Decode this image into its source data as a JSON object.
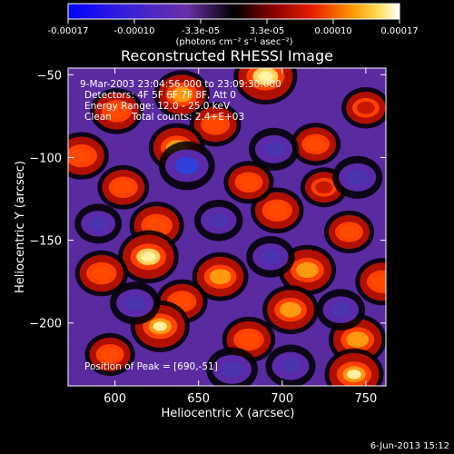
{
  "colorbar": {
    "tick_labels": [
      "-0.00017",
      "-0.00010",
      "-3.3e-05",
      "3.3e-05",
      "0.00010",
      "0.00017"
    ],
    "units_label": "(photons cm⁻² s⁻¹ asec⁻²)"
  },
  "annotations": {
    "time_range": "9-Mar-2003 23:04:56.000 to 23:09:30.000",
    "detectors": "Detectors: 4F 5F 6F 7F 8F, Att 0",
    "energy": "Energy Range: 12.0 - 25.0 keV",
    "algorithm": "Clean",
    "counts": "Total counts: 2.4+E+03",
    "peak": "Position of Peak = [690,-51]"
  },
  "footer": {
    "timestamp": "6-Jun-2013 15:12"
  },
  "colors": {
    "background": "#000000",
    "text": "#ffffff",
    "colormap_low": "#0000ff",
    "colormap_mid": "#000000",
    "colormap_high": "#ffffff"
  },
  "chart_data": {
    "type": "heatmap",
    "title": "Reconstructed RHESSI Image",
    "xlabel": "Heliocentric X (arcsec)",
    "ylabel": "Heliocentric Y (arcsec)",
    "xlim": [
      572,
      762
    ],
    "ylim": [
      -238,
      -46
    ],
    "x_ticks": [
      600,
      650,
      700,
      750
    ],
    "y_ticks": [
      -50,
      -100,
      -150,
      -200
    ],
    "x_tick_labels": [
      "600",
      "650",
      "700",
      "750"
    ],
    "y_tick_labels": [
      "−50",
      "−100",
      "−150",
      "−200"
    ],
    "colorbar_range": [
      -0.00017,
      0.00017
    ],
    "peak": {
      "x": 690,
      "y": -51
    },
    "features": [
      {
        "x": 690,
        "y": -51,
        "value": 0.00017
      },
      {
        "x": 640,
        "y": -62,
        "value": 0.00012
      },
      {
        "x": 601,
        "y": -72,
        "value": 0.0001
      },
      {
        "x": 660,
        "y": -80,
        "value": 9e-05
      },
      {
        "x": 580,
        "y": -99,
        "value": 0.00011
      },
      {
        "x": 637,
        "y": -94,
        "value": 0.00012
      },
      {
        "x": 720,
        "y": -92,
        "value": 8e-05
      },
      {
        "x": 750,
        "y": -70,
        "value": 7e-05
      },
      {
        "x": 605,
        "y": -118,
        "value": 9e-05
      },
      {
        "x": 725,
        "y": -118,
        "value": 6e-05
      },
      {
        "x": 697,
        "y": -132,
        "value": 0.0001
      },
      {
        "x": 680,
        "y": -115,
        "value": 8e-05
      },
      {
        "x": 625,
        "y": -141,
        "value": 0.00011
      },
      {
        "x": 740,
        "y": -145,
        "value": 8e-05
      },
      {
        "x": 620,
        "y": -160,
        "value": 0.00015
      },
      {
        "x": 663,
        "y": -172,
        "value": 0.00012
      },
      {
        "x": 715,
        "y": -168,
        "value": 0.00013
      },
      {
        "x": 592,
        "y": -170,
        "value": 0.0001
      },
      {
        "x": 760,
        "y": -175,
        "value": 0.00011
      },
      {
        "x": 640,
        "y": -187,
        "value": 9e-05
      },
      {
        "x": 705,
        "y": -192,
        "value": 0.00012
      },
      {
        "x": 627,
        "y": -202,
        "value": 0.00014
      },
      {
        "x": 680,
        "y": -210,
        "value": 0.0001
      },
      {
        "x": 745,
        "y": -210,
        "value": 0.00013
      },
      {
        "x": 597,
        "y": -219,
        "value": 8e-05
      },
      {
        "x": 743,
        "y": -231,
        "value": 0.00014
      },
      {
        "x": 643,
        "y": -105,
        "value": -0.00012
      },
      {
        "x": 695,
        "y": -95,
        "value": -8e-05
      },
      {
        "x": 662,
        "y": -138,
        "value": -7e-05
      },
      {
        "x": 745,
        "y": -112,
        "value": -8e-05
      },
      {
        "x": 612,
        "y": -188,
        "value": -8e-05
      },
      {
        "x": 693,
        "y": -160,
        "value": -7e-05
      },
      {
        "x": 670,
        "y": -228,
        "value": -9e-05
      },
      {
        "x": 735,
        "y": -192,
        "value": -7e-05
      },
      {
        "x": 590,
        "y": -140,
        "value": -6e-05
      },
      {
        "x": 705,
        "y": -226,
        "value": -8e-05
      }
    ]
  }
}
